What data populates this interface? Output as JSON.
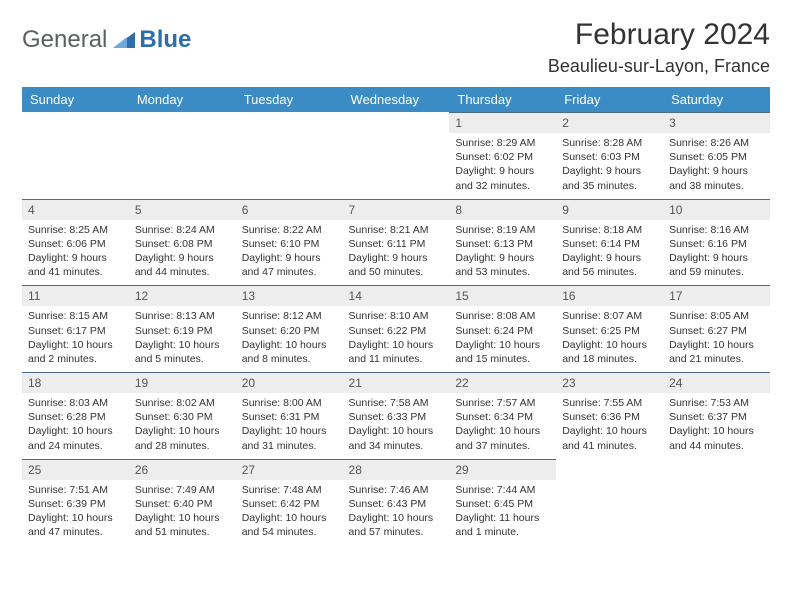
{
  "brand": {
    "part1": "General",
    "part2": "Blue",
    "color1": "#5a5f66",
    "color2": "#2d6ea8"
  },
  "title": "February 2024",
  "location": "Beaulieu-sur-Layon, France",
  "header_bg": "#3b8bc4",
  "header_fg": "#ffffff",
  "daynum_bg": "#ededed",
  "divider_color": "#4a6b8a",
  "weekdays": [
    "Sunday",
    "Monday",
    "Tuesday",
    "Wednesday",
    "Thursday",
    "Friday",
    "Saturday"
  ],
  "weeks": [
    [
      null,
      null,
      null,
      null,
      {
        "n": "1",
        "sr": "8:29 AM",
        "ss": "6:02 PM",
        "dl": "9 hours and 32 minutes."
      },
      {
        "n": "2",
        "sr": "8:28 AM",
        "ss": "6:03 PM",
        "dl": "9 hours and 35 minutes."
      },
      {
        "n": "3",
        "sr": "8:26 AM",
        "ss": "6:05 PM",
        "dl": "9 hours and 38 minutes."
      }
    ],
    [
      {
        "n": "4",
        "sr": "8:25 AM",
        "ss": "6:06 PM",
        "dl": "9 hours and 41 minutes."
      },
      {
        "n": "5",
        "sr": "8:24 AM",
        "ss": "6:08 PM",
        "dl": "9 hours and 44 minutes."
      },
      {
        "n": "6",
        "sr": "8:22 AM",
        "ss": "6:10 PM",
        "dl": "9 hours and 47 minutes."
      },
      {
        "n": "7",
        "sr": "8:21 AM",
        "ss": "6:11 PM",
        "dl": "9 hours and 50 minutes."
      },
      {
        "n": "8",
        "sr": "8:19 AM",
        "ss": "6:13 PM",
        "dl": "9 hours and 53 minutes."
      },
      {
        "n": "9",
        "sr": "8:18 AM",
        "ss": "6:14 PM",
        "dl": "9 hours and 56 minutes."
      },
      {
        "n": "10",
        "sr": "8:16 AM",
        "ss": "6:16 PM",
        "dl": "9 hours and 59 minutes."
      }
    ],
    [
      {
        "n": "11",
        "sr": "8:15 AM",
        "ss": "6:17 PM",
        "dl": "10 hours and 2 minutes."
      },
      {
        "n": "12",
        "sr": "8:13 AM",
        "ss": "6:19 PM",
        "dl": "10 hours and 5 minutes."
      },
      {
        "n": "13",
        "sr": "8:12 AM",
        "ss": "6:20 PM",
        "dl": "10 hours and 8 minutes."
      },
      {
        "n": "14",
        "sr": "8:10 AM",
        "ss": "6:22 PM",
        "dl": "10 hours and 11 minutes."
      },
      {
        "n": "15",
        "sr": "8:08 AM",
        "ss": "6:24 PM",
        "dl": "10 hours and 15 minutes."
      },
      {
        "n": "16",
        "sr": "8:07 AM",
        "ss": "6:25 PM",
        "dl": "10 hours and 18 minutes."
      },
      {
        "n": "17",
        "sr": "8:05 AM",
        "ss": "6:27 PM",
        "dl": "10 hours and 21 minutes."
      }
    ],
    [
      {
        "n": "18",
        "sr": "8:03 AM",
        "ss": "6:28 PM",
        "dl": "10 hours and 24 minutes."
      },
      {
        "n": "19",
        "sr": "8:02 AM",
        "ss": "6:30 PM",
        "dl": "10 hours and 28 minutes."
      },
      {
        "n": "20",
        "sr": "8:00 AM",
        "ss": "6:31 PM",
        "dl": "10 hours and 31 minutes."
      },
      {
        "n": "21",
        "sr": "7:58 AM",
        "ss": "6:33 PM",
        "dl": "10 hours and 34 minutes."
      },
      {
        "n": "22",
        "sr": "7:57 AM",
        "ss": "6:34 PM",
        "dl": "10 hours and 37 minutes."
      },
      {
        "n": "23",
        "sr": "7:55 AM",
        "ss": "6:36 PM",
        "dl": "10 hours and 41 minutes."
      },
      {
        "n": "24",
        "sr": "7:53 AM",
        "ss": "6:37 PM",
        "dl": "10 hours and 44 minutes."
      }
    ],
    [
      {
        "n": "25",
        "sr": "7:51 AM",
        "ss": "6:39 PM",
        "dl": "10 hours and 47 minutes."
      },
      {
        "n": "26",
        "sr": "7:49 AM",
        "ss": "6:40 PM",
        "dl": "10 hours and 51 minutes."
      },
      {
        "n": "27",
        "sr": "7:48 AM",
        "ss": "6:42 PM",
        "dl": "10 hours and 54 minutes."
      },
      {
        "n": "28",
        "sr": "7:46 AM",
        "ss": "6:43 PM",
        "dl": "10 hours and 57 minutes."
      },
      {
        "n": "29",
        "sr": "7:44 AM",
        "ss": "6:45 PM",
        "dl": "11 hours and 1 minute."
      },
      null,
      null
    ]
  ]
}
